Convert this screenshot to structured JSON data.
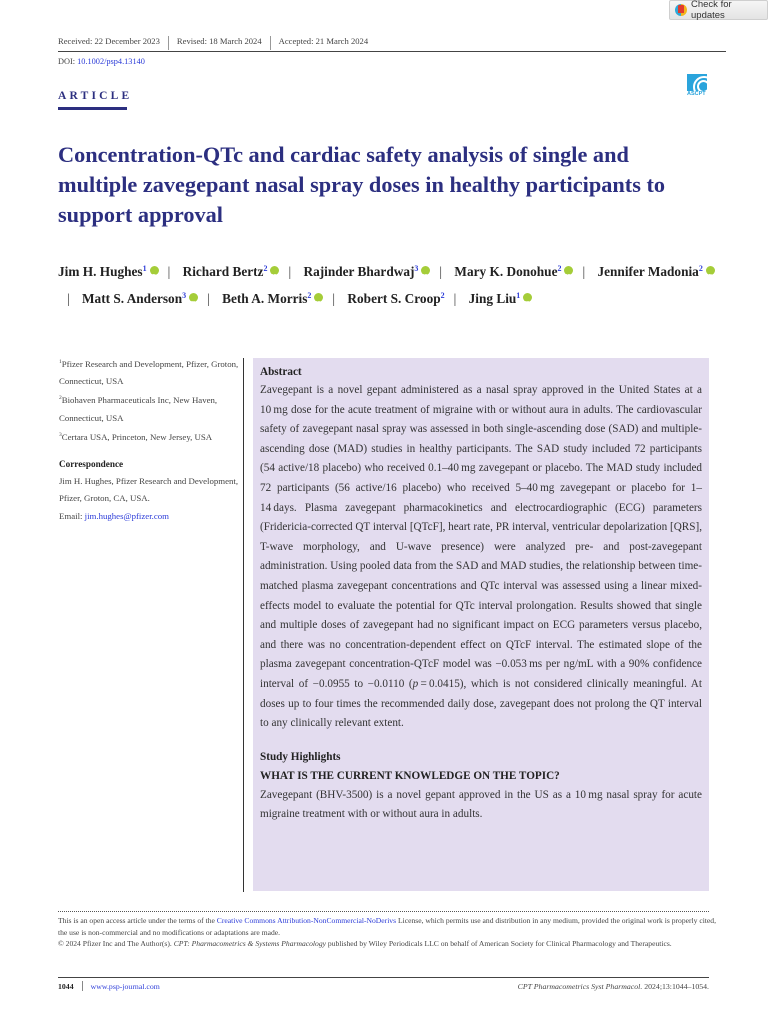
{
  "check_updates": {
    "label": "Check for updates"
  },
  "header": {
    "received": "Received: 22 December 2023",
    "revised": "Revised: 18 March 2024",
    "accepted": "Accepted: 21 March 2024",
    "doi_label": "DOI: ",
    "doi_link": "10.1002/psp4.13140",
    "article_type": "ARTICLE",
    "logo_text": "ASCPT"
  },
  "title": "Concentration-QTc and cardiac safety analysis of single and multiple zavegepant nasal spray doses in healthy participants to support approval",
  "authors": [
    {
      "name": "Jim H. Hughes",
      "aff": "1",
      "orcid": true
    },
    {
      "name": "Richard Bertz",
      "aff": "2",
      "orcid": true
    },
    {
      "name": "Rajinder Bhardwaj",
      "aff": "3",
      "orcid": true
    },
    {
      "name": "Mary K. Donohue",
      "aff": "2",
      "orcid": true
    },
    {
      "name": "Jennifer Madonia",
      "aff": "2",
      "orcid": true
    },
    {
      "name": "Matt S. Anderson",
      "aff": "3",
      "orcid": true
    },
    {
      "name": "Beth A. Morris",
      "aff": "2",
      "orcid": true
    },
    {
      "name": "Robert S. Croop",
      "aff": "2",
      "orcid": false
    },
    {
      "name": "Jing Liu",
      "aff": "1",
      "orcid": true
    }
  ],
  "affiliations": [
    {
      "num": "1",
      "text": "Pfizer Research and Development, Pfizer, Groton, Connecticut, USA"
    },
    {
      "num": "2",
      "text": "Biohaven Pharmaceuticals Inc, New Haven, Connecticut, USA"
    },
    {
      "num": "3",
      "text": "Certara USA, Princeton, New Jersey, USA"
    }
  ],
  "correspondence": {
    "heading": "Correspondence",
    "text": "Jim H. Hughes, Pfizer Research and Development, Pfizer, Groton, CA, USA.",
    "email_label": "Email: ",
    "email": "jim.hughes@pfizer.com"
  },
  "abstract": {
    "heading": "Abstract",
    "body": "Zavegepant is a novel gepant administered as a nasal spray approved in the United States at a 10 mg dose for the acute treatment of migraine with or with­out aura in adults. The cardiovascular safety of zavegepant nasal spray was as­sessed in both single-ascending dose (SAD) and multiple-ascending dose (MAD) studies in healthy participants. The SAD study included 72 participants (54 ac­tive/18 placebo) who received 0.1–40 mg zavegepant or placebo. The MAD study included 72 participants (56 active/16 placebo) who received 5–40 mg zavegepant or placebo for 1–14 days. Plasma zavegepant pharmacokinetics and electrocardio­graphic (ECG) parameters (Fridericia-corrected QT interval [QTcF], heart rate, PR interval, ventricular depolarization [QRS], T-wave morphology, and U-wave presence) were analyzed pre- and post-zavegepant administration. Using pooled data from the SAD and MAD studies, the relationship between time-matched plasma zavegepant concentrations and QTc interval was assessed using a lin­ear mixed-effects model to evaluate the potential for QTc interval prolongation. Results showed that single and multiple doses of zavegepant had no significant impact on ECG parameters versus placebo, and there was no concentration-dependent effect on QTcF interval. The estimated slope of the plasma zavege­pant concentration-QTcF model was −0.053 ms per ng/mL with a 90% confidence interval of −0.0955 to −0.0110 (p = 0.0415), which is not considered clinically meaningful. At doses up to four times the recommended daily dose, zavegepant does not prolong the QT interval to any clinically relevant extent."
  },
  "study_highlights": {
    "heading": "Study Highlights",
    "question": "WHAT IS THE CURRENT KNOWLEDGE ON THE TOPIC?",
    "answer": "Zavegepant (BHV-3500) is a novel gepant approved in the US as a 10 mg nasal spray for acute migraine treatment with or without aura in adults."
  },
  "license": {
    "prefix": "This is an open access article under the terms of the ",
    "link": "Creative Commons Attribution-NonCommercial-NoDerivs",
    "suffix": " License, which permits use and distribution in any medium, provided the original work is properly cited, the use is non-commercial and no modifications or adaptations are made.",
    "copyright_prefix": "© 2024 Pfizer Inc and The Author(s). ",
    "journal_italic": "CPT: Pharmacometrics & Systems Pharmacology",
    "copyright_suffix": " published by Wiley Periodicals LLC on behalf of American Society for Clinical Pharmacology and Therapeutics."
  },
  "footer": {
    "page": "1044",
    "website": "www.psp-journal.com",
    "citation_italic": "CPT Pharmacometrics Syst Pharmacol.",
    "citation_rest": " 2024;13:1044–1054."
  }
}
